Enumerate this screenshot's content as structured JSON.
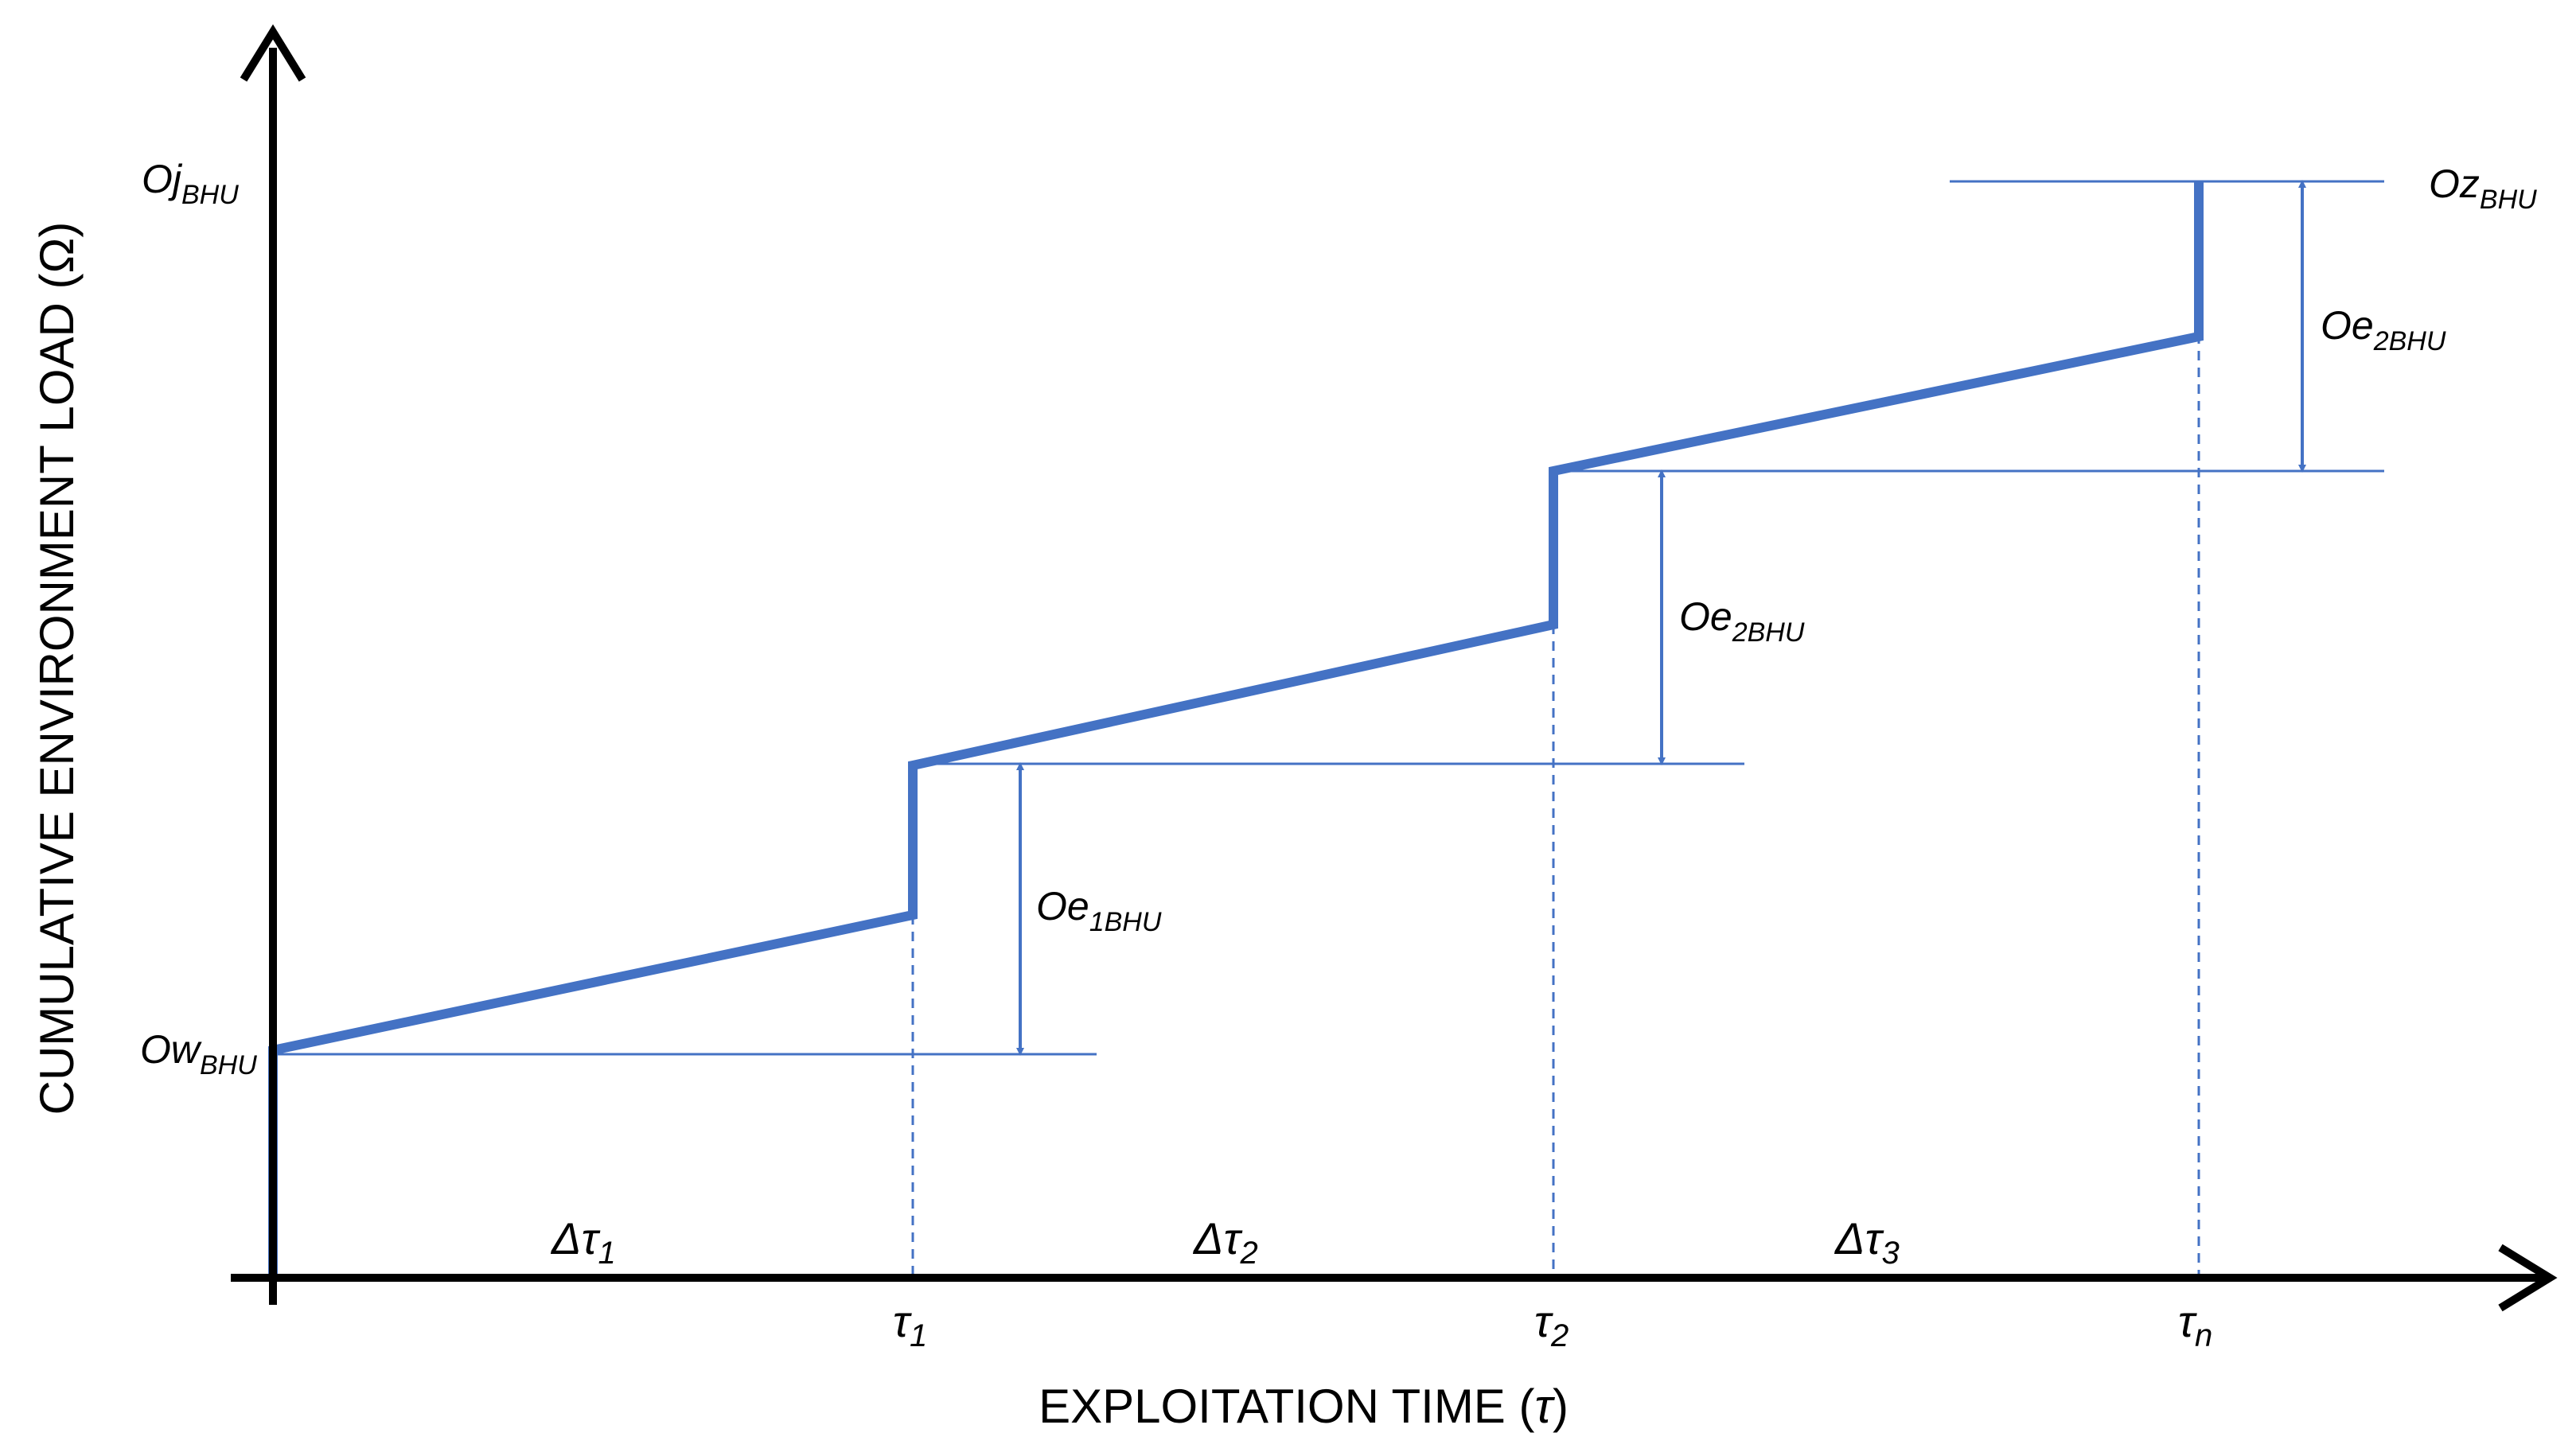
{
  "axes": {
    "y_label": "CUMULATIVE ENVIRONMENT LOAD (Ω)",
    "x_label_main": "EXPLOITATION TIME (",
    "x_label_tau": "τ",
    "x_label_close": ")"
  },
  "levels": {
    "ow": {
      "main": "Ow",
      "sub": "BHU"
    },
    "oj": {
      "main": "Oj",
      "sub": "BHU"
    },
    "oz": {
      "main": "Oz",
      "sub": "BHU"
    }
  },
  "increments": [
    {
      "main": "Oe",
      "sub": "1BHU"
    },
    {
      "main": "Oe",
      "sub": "2BHU"
    },
    {
      "main": "Oe",
      "sub": "2BHU"
    }
  ],
  "time_ticks": [
    {
      "main": "τ",
      "sub": "1"
    },
    {
      "main": "τ",
      "sub": "2"
    },
    {
      "main": "τ",
      "sub": "n"
    }
  ],
  "intervals": [
    {
      "main": "Δτ",
      "sub": "1"
    },
    {
      "main": "Δτ",
      "sub": "2"
    },
    {
      "main": "Δτ",
      "sub": "3"
    }
  ],
  "colors": {
    "curve": "#4472C4",
    "guide": "#4472C4",
    "axis": "#000000"
  }
}
